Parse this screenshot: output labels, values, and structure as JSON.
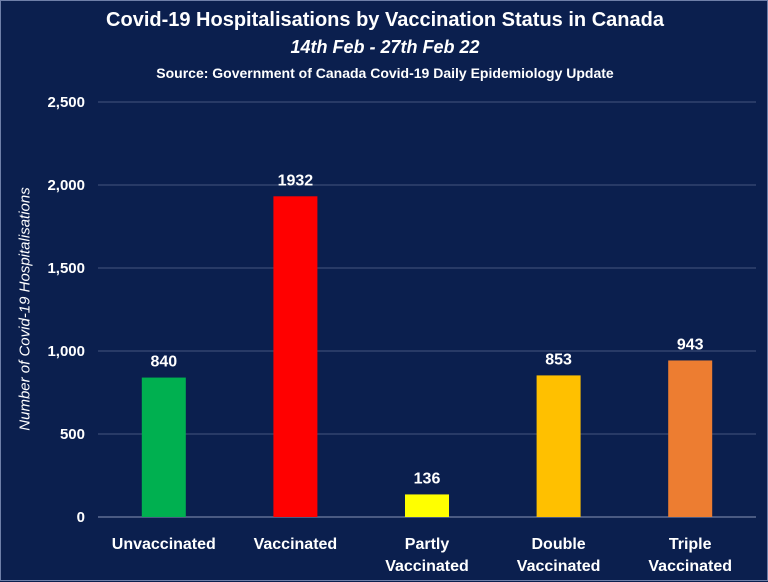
{
  "chart_data": {
    "type": "bar",
    "title": "Covid-19 Hospitalisations by Vaccination Status in Canada",
    "subtitle": "14th Feb - 27th Feb 22",
    "source": "Source: Government of Canada  Covid-19 Daily Epidemiology Update",
    "ylabel": "Number of Covid-19 Hospitalisations",
    "xlabel": "",
    "categories": [
      [
        "Unvaccinated"
      ],
      [
        "Vaccinated"
      ],
      [
        "Partly",
        "Vaccinated"
      ],
      [
        "Double",
        "Vaccinated"
      ],
      [
        "Triple",
        "Vaccinated"
      ]
    ],
    "values": [
      840,
      1932,
      136,
      853,
      943
    ],
    "colors": [
      "#00b050",
      "#ff0000",
      "#ffff00",
      "#ffc000",
      "#ed7d31"
    ],
    "ylim": [
      0,
      2500
    ],
    "yticks": [
      0,
      500,
      1000,
      1500,
      2000,
      2500
    ],
    "ytick_labels": [
      "0",
      "500",
      "1,000",
      "1,500",
      "2,000",
      "2,500"
    ],
    "grid": true,
    "legend": "none",
    "data_labels": true
  }
}
